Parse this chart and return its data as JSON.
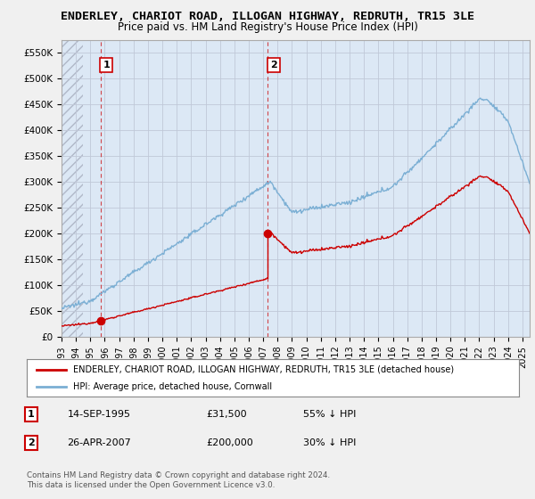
{
  "title": "ENDERLEY, CHARIOT ROAD, ILLOGAN HIGHWAY, REDRUTH, TR15 3LE",
  "subtitle": "Price paid vs. HM Land Registry's House Price Index (HPI)",
  "bg_color": "#f0f0f0",
  "plot_bg_color": "#dce8f5",
  "sale1_date_num": 1995.71,
  "sale1_price": 31500,
  "sale2_date_num": 2007.32,
  "sale2_price": 200000,
  "legend_line1": "ENDERLEY, CHARIOT ROAD, ILLOGAN HIGHWAY, REDRUTH, TR15 3LE (detached house)",
  "legend_line2": "HPI: Average price, detached house, Cornwall",
  "footer": "Contains HM Land Registry data © Crown copyright and database right 2024.\nThis data is licensed under the Open Government Licence v3.0.",
  "red_color": "#cc0000",
  "blue_color": "#7bafd4",
  "ylim": [
    0,
    575000
  ],
  "yticks": [
    0,
    50000,
    100000,
    150000,
    200000,
    250000,
    300000,
    350000,
    400000,
    450000,
    500000,
    550000
  ],
  "ytick_labels": [
    "£0",
    "£50K",
    "£100K",
    "£150K",
    "£200K",
    "£250K",
    "£300K",
    "£350K",
    "£400K",
    "£450K",
    "£500K",
    "£550K"
  ],
  "xlim_start": 1993.0,
  "xlim_end": 2025.5,
  "xticks": [
    1993,
    1994,
    1995,
    1996,
    1997,
    1998,
    1999,
    2000,
    2001,
    2002,
    2003,
    2004,
    2005,
    2006,
    2007,
    2008,
    2009,
    2010,
    2011,
    2012,
    2013,
    2014,
    2015,
    2016,
    2017,
    2018,
    2019,
    2020,
    2021,
    2022,
    2023,
    2024,
    2025
  ]
}
